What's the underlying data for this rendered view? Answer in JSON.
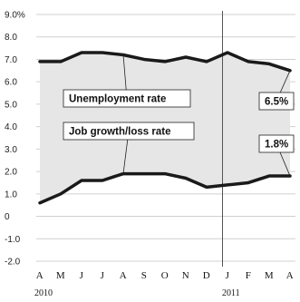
{
  "chart_data": {
    "type": "line",
    "x": [
      "A",
      "M",
      "J",
      "J",
      "A",
      "S",
      "O",
      "N",
      "D",
      "J",
      "F",
      "M",
      "A"
    ],
    "year_labels": [
      "2010",
      "2011"
    ],
    "ylim": [
      -2.0,
      9.0
    ],
    "yticks": [
      {
        "v": 9.0,
        "label": "9.0%"
      },
      {
        "v": 8.0,
        "label": "8.0"
      },
      {
        "v": 7.0,
        "label": "7.0"
      },
      {
        "v": 6.0,
        "label": "6.0"
      },
      {
        "v": 5.0,
        "label": "5.0"
      },
      {
        "v": 4.0,
        "label": "4.0"
      },
      {
        "v": 3.0,
        "label": "3.0"
      },
      {
        "v": 2.0,
        "label": "2.0"
      },
      {
        "v": 1.0,
        "label": "1.0"
      },
      {
        "v": 0,
        "label": "0"
      },
      {
        "v": -1.0,
        "label": "-1.0"
      },
      {
        "v": -2.0,
        "label": "-2.0"
      }
    ],
    "grid": true,
    "shaded_between_series": true,
    "colors": {
      "line": "#1a1a1a",
      "fill": "#e6e6e6",
      "grid": "#d0d0d0",
      "divider": "#555555"
    },
    "series": [
      {
        "name": "Unemployment rate",
        "values": [
          6.9,
          6.9,
          7.3,
          7.3,
          7.2,
          7.0,
          6.9,
          7.1,
          6.9,
          7.3,
          6.9,
          6.8,
          6.5
        ]
      },
      {
        "name": "Job growth/loss rate",
        "values": [
          0.6,
          1.0,
          1.6,
          1.6,
          1.9,
          1.9,
          1.9,
          1.7,
          1.3,
          1.4,
          1.5,
          1.8,
          1.8
        ]
      }
    ],
    "end_labels": [
      "6.5%",
      "1.8%"
    ]
  }
}
